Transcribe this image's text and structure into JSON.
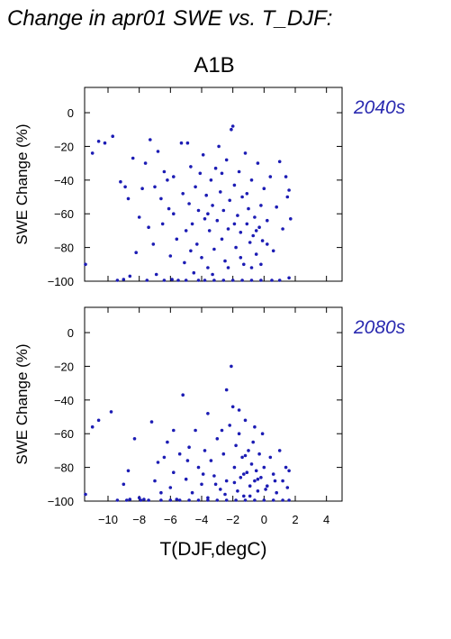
{
  "title": "Change in apr01 SWE vs. T_DJF:",
  "scenario": "A1B",
  "colors": {
    "points": "#1c1cb4",
    "period_label": "#2a2ab0"
  },
  "chart_data": [
    {
      "type": "scatter",
      "period": "2040s",
      "xlabel": "",
      "ylabel": "SWE Change (%)",
      "xlim": [
        -11.5,
        5
      ],
      "ylim": [
        -100,
        15
      ],
      "y_ticks": [
        0,
        -20,
        -40,
        -60,
        -80,
        -100
      ],
      "x_ticks": [
        -10,
        -8,
        -6,
        -4,
        -2,
        0,
        2,
        4
      ],
      "x_tick_labels_shown": false,
      "grid": false,
      "points": [
        [
          -11.5,
          -90
        ],
        [
          -11,
          -24
        ],
        [
          -10.6,
          -17
        ],
        [
          -10.2,
          -18
        ],
        [
          -9.7,
          -14
        ],
        [
          -9.2,
          -41
        ],
        [
          -8.9,
          -44
        ],
        [
          -8.7,
          -51
        ],
        [
          -9.4,
          -100
        ],
        [
          -9,
          -99
        ],
        [
          -8.6,
          -97
        ],
        [
          -8.4,
          -27
        ],
        [
          -8.2,
          -83
        ],
        [
          -8,
          -62
        ],
        [
          -7.8,
          -45
        ],
        [
          -7.6,
          -30
        ],
        [
          -7.5,
          -100
        ],
        [
          -7.4,
          -68
        ],
        [
          -7.3,
          -16
        ],
        [
          -7.1,
          -78
        ],
        [
          -7,
          -44
        ],
        [
          -6.9,
          -96
        ],
        [
          -6.8,
          -23
        ],
        [
          -6.6,
          -51
        ],
        [
          -6.5,
          -66
        ],
        [
          -6.4,
          -35
        ],
        [
          -6.2,
          -40
        ],
        [
          -6.1,
          -57
        ],
        [
          -6,
          -85
        ],
        [
          -5.9,
          -99
        ],
        [
          -5.8,
          -60
        ],
        [
          -5.6,
          -75
        ],
        [
          -5.5,
          -100
        ],
        [
          -5.3,
          -18
        ],
        [
          -5.2,
          -48
        ],
        [
          -5.1,
          -89
        ],
        [
          -5,
          -70
        ],
        [
          -4.9,
          -18
        ],
        [
          -4.8,
          -54
        ],
        [
          -4.7,
          -32
        ],
        [
          -4.6,
          -66
        ],
        [
          -4.5,
          -95
        ],
        [
          -4.4,
          -44
        ],
        [
          -4.3,
          -78
        ],
        [
          -4.2,
          -58
        ],
        [
          -4.1,
          -36
        ],
        [
          -4,
          -86
        ],
        [
          -3.9,
          -25
        ],
        [
          -3.8,
          -63
        ],
        [
          -3.7,
          -49
        ],
        [
          -3.6,
          -92
        ],
        [
          -3.5,
          -70
        ],
        [
          -3.4,
          -40
        ],
        [
          -3.3,
          -55
        ],
        [
          -3.2,
          -81
        ],
        [
          -3.1,
          -33
        ],
        [
          -3,
          -64
        ],
        [
          -2.9,
          -20
        ],
        [
          -2.8,
          -47
        ],
        [
          -2.7,
          -75
        ],
        [
          -2.6,
          -58
        ],
        [
          -2.5,
          -88
        ],
        [
          -2.4,
          -28
        ],
        [
          -2.3,
          -69
        ],
        [
          -2.2,
          -52
        ],
        [
          -2.1,
          -10
        ],
        [
          -2,
          -8
        ],
        [
          -1.9,
          -43
        ],
        [
          -1.8,
          -80
        ],
        [
          -1.7,
          -61
        ],
        [
          -1.6,
          -35
        ],
        [
          -1.5,
          -71
        ],
        [
          -1.4,
          -50
        ],
        [
          -1.3,
          -90
        ],
        [
          -1.2,
          -24
        ],
        [
          -1.1,
          -66
        ],
        [
          -1,
          -57
        ],
        [
          -0.9,
          -77
        ],
        [
          -0.8,
          -40
        ],
        [
          -0.7,
          -73
        ],
        [
          -0.6,
          -62
        ],
        [
          -0.5,
          -84
        ],
        [
          -0.4,
          -30
        ],
        [
          -0.3,
          -68
        ],
        [
          -0.2,
          -55
        ],
        [
          -0.1,
          -76
        ],
        [
          0,
          -45
        ],
        [
          0.2,
          -64
        ],
        [
          0.4,
          -38
        ],
        [
          0.6,
          -82
        ],
        [
          0.8,
          -56
        ],
        [
          1,
          -29
        ],
        [
          1.2,
          -69
        ],
        [
          1.4,
          -38
        ],
        [
          1.5,
          -50
        ],
        [
          1.6,
          -46
        ],
        [
          1.7,
          -63
        ],
        [
          1.6,
          -98
        ],
        [
          -5.8,
          -38
        ],
        [
          -4.7,
          -82
        ],
        [
          -3.6,
          -60
        ],
        [
          -3.3,
          -96
        ],
        [
          -2.7,
          -36
        ],
        [
          -2.3,
          -92
        ],
        [
          -1.9,
          -66
        ],
        [
          -1.5,
          -86
        ],
        [
          -1.1,
          -48
        ],
        [
          -0.8,
          -92
        ],
        [
          -0.5,
          -70
        ],
        [
          -0.2,
          -90
        ],
        [
          0.2,
          -78
        ],
        [
          -4.2,
          -100
        ],
        [
          -3.8,
          -100
        ],
        [
          -3.2,
          -100
        ],
        [
          -2.6,
          -100
        ],
        [
          -2,
          -100
        ],
        [
          -1.4,
          -100
        ],
        [
          -0.8,
          -100
        ],
        [
          -0.2,
          -100
        ],
        [
          0.5,
          -100
        ],
        [
          1,
          -100
        ],
        [
          -6.4,
          -100
        ],
        [
          -5,
          -100
        ]
      ]
    },
    {
      "type": "scatter",
      "period": "2080s",
      "xlabel": "T(DJF,degC)",
      "ylabel": "SWE Change (%)",
      "xlim": [
        -11.5,
        5
      ],
      "ylim": [
        -100,
        15
      ],
      "y_ticks": [
        0,
        -20,
        -40,
        -60,
        -80,
        -100
      ],
      "x_ticks": [
        -10,
        -8,
        -6,
        -4,
        -2,
        0,
        2,
        4
      ],
      "x_tick_labels_shown": true,
      "grid": false,
      "points": [
        [
          -11.5,
          -96
        ],
        [
          -11,
          -56
        ],
        [
          -10.6,
          -52
        ],
        [
          -9.8,
          -47
        ],
        [
          -9.4,
          -100
        ],
        [
          -9,
          -90
        ],
        [
          -8.7,
          -82
        ],
        [
          -8.6,
          -99
        ],
        [
          -8.3,
          -63
        ],
        [
          -8,
          -98
        ],
        [
          -7.7,
          -99
        ],
        [
          -7.4,
          -100
        ],
        [
          -7.2,
          -53
        ],
        [
          -7,
          -88
        ],
        [
          -6.8,
          -77
        ],
        [
          -6.6,
          -95
        ],
        [
          -6.4,
          -74
        ],
        [
          -6.2,
          -65
        ],
        [
          -6,
          -92
        ],
        [
          -5.8,
          -83
        ],
        [
          -5.6,
          -99
        ],
        [
          -5.4,
          -72
        ],
        [
          -5.2,
          -37
        ],
        [
          -5,
          -87
        ],
        [
          -4.8,
          -68
        ],
        [
          -4.6,
          -95
        ],
        [
          -4.4,
          -58
        ],
        [
          -4.2,
          -80
        ],
        [
          -4,
          -90
        ],
        [
          -3.8,
          -70
        ],
        [
          -3.6,
          -98
        ],
        [
          -3.4,
          -76
        ],
        [
          -3.2,
          -85
        ],
        [
          -3,
          -63
        ],
        [
          -2.8,
          -93
        ],
        [
          -2.6,
          -72
        ],
        [
          -2.4,
          -88
        ],
        [
          -2.2,
          -55
        ],
        [
          -2.1,
          -20
        ],
        [
          -2,
          -44
        ],
        [
          -1.9,
          -80
        ],
        [
          -1.8,
          -67
        ],
        [
          -1.7,
          -94
        ],
        [
          -1.6,
          -60
        ],
        [
          -1.5,
          -86
        ],
        [
          -1.4,
          -74
        ],
        [
          -1.3,
          -97
        ],
        [
          -1.2,
          -52
        ],
        [
          -1.1,
          -83
        ],
        [
          -1,
          -70
        ],
        [
          -0.9,
          -91
        ],
        [
          -0.8,
          -78
        ],
        [
          -0.7,
          -65
        ],
        [
          -0.6,
          -88
        ],
        [
          -0.5,
          -82
        ],
        [
          -0.4,
          -94
        ],
        [
          -0.3,
          -72
        ],
        [
          -0.2,
          -86
        ],
        [
          -0.1,
          -60
        ],
        [
          0,
          -80
        ],
        [
          0.2,
          -91
        ],
        [
          0.4,
          -74
        ],
        [
          0.6,
          -84
        ],
        [
          0.8,
          -95
        ],
        [
          1,
          -70
        ],
        [
          1.2,
          -88
        ],
        [
          1.4,
          -80
        ],
        [
          1.5,
          -92
        ],
        [
          1.6,
          -82
        ],
        [
          -3.6,
          -48
        ],
        [
          -2.7,
          -58
        ],
        [
          -2.4,
          -34
        ],
        [
          -1.6,
          -46
        ],
        [
          -1.2,
          -73
        ],
        [
          -0.6,
          -56
        ],
        [
          -5.8,
          -58
        ],
        [
          -4.9,
          -76
        ],
        [
          -3.9,
          -84
        ],
        [
          -3.1,
          -90
        ],
        [
          -2.5,
          -96
        ],
        [
          -1.9,
          -89
        ],
        [
          -1.3,
          -84
        ],
        [
          -0.9,
          -97
        ],
        [
          -0.4,
          -87
        ],
        [
          0.1,
          -93
        ],
        [
          0.7,
          -88
        ],
        [
          -6.6,
          -100
        ],
        [
          -6,
          -100
        ],
        [
          -5.4,
          -100
        ],
        [
          -4.8,
          -100
        ],
        [
          -4.2,
          -100
        ],
        [
          -3.6,
          -100
        ],
        [
          -3,
          -100
        ],
        [
          -2.4,
          -100
        ],
        [
          -1.8,
          -100
        ],
        [
          -1.2,
          -100
        ],
        [
          -0.6,
          -100
        ],
        [
          0,
          -100
        ],
        [
          0.6,
          -100
        ],
        [
          1.2,
          -100
        ],
        [
          1.6,
          -100
        ],
        [
          -7.9,
          -100
        ],
        [
          -8.8,
          -100
        ]
      ]
    }
  ]
}
